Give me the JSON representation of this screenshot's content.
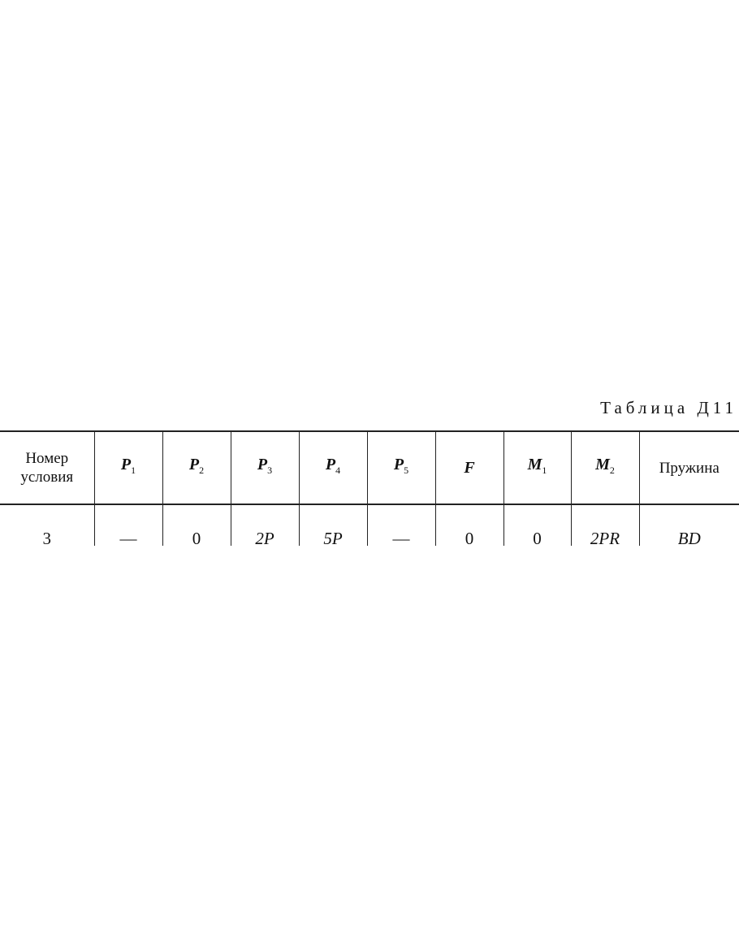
{
  "title": "Таблица Д11",
  "table": {
    "headers": [
      {
        "base": "Номер условия",
        "sub": ""
      },
      {
        "base": "P",
        "sub": "1"
      },
      {
        "base": "P",
        "sub": "2"
      },
      {
        "base": "P",
        "sub": "3"
      },
      {
        "base": "P",
        "sub": "4"
      },
      {
        "base": "P",
        "sub": "5"
      },
      {
        "base": "F",
        "sub": ""
      },
      {
        "base": "M",
        "sub": "1"
      },
      {
        "base": "M",
        "sub": "2"
      },
      {
        "base": "Пружина",
        "sub": ""
      }
    ],
    "rows": [
      [
        "3",
        "—",
        "0",
        "2P",
        "5P",
        "—",
        "0",
        "0",
        "2PR",
        "BD"
      ]
    ]
  }
}
